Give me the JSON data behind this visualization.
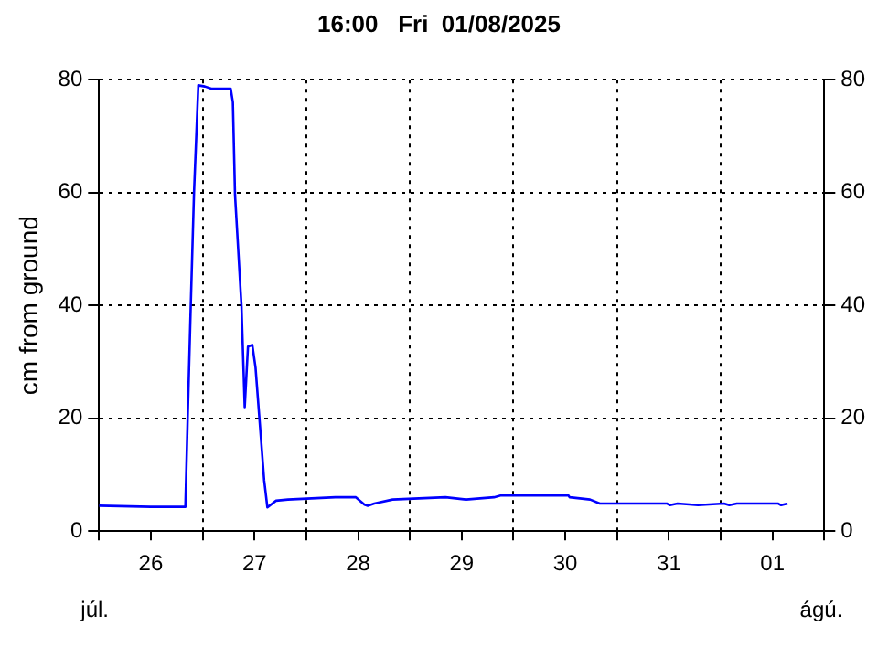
{
  "chart_data": {
    "type": "line",
    "title": "16:00   Fri  01/08/2025",
    "ylabel": "cm from ground",
    "annotations": [
      "júl.",
      "ágú."
    ],
    "x": [
      "2025-07-26T00:00",
      "2025-07-26T12:00",
      "2025-07-26T20:00",
      "2025-07-26T20:30",
      "2025-07-26T21:15",
      "2025-07-26T22:00",
      "2025-07-26T23:00",
      "2025-07-27T00:30",
      "2025-07-27T02:00",
      "2025-07-27T06:30",
      "2025-07-27T07:00",
      "2025-07-27T07:30",
      "2025-07-27T09:00",
      "2025-07-27T09:45",
      "2025-07-27T10:30",
      "2025-07-27T11:30",
      "2025-07-27T12:15",
      "2025-07-27T13:15",
      "2025-07-27T14:15",
      "2025-07-27T15:00",
      "2025-07-27T17:00",
      "2025-07-27T19:45",
      "2025-07-28T06:45",
      "2025-07-28T11:30",
      "2025-07-28T13:30",
      "2025-07-28T14:15",
      "2025-07-28T15:45",
      "2025-07-28T20:00",
      "2025-07-29T08:15",
      "2025-07-29T13:00",
      "2025-07-29T19:30",
      "2025-07-29T21:00",
      "2025-07-30T12:45",
      "2025-07-30T13:00",
      "2025-07-30T17:45",
      "2025-07-30T20:00",
      "2025-07-31T11:30",
      "2025-07-31T12:15",
      "2025-07-31T14:00",
      "2025-07-31T18:45",
      "2025-08-01T00:45",
      "2025-08-01T02:00",
      "2025-08-01T03:45",
      "2025-08-01T13:15",
      "2025-08-01T14:00",
      "2025-08-01T15:30"
    ],
    "series": [
      {
        "color": "#0000ff",
        "values": [
          4.5,
          4.3,
          4.3,
          19,
          40,
          60,
          79,
          78.8,
          78.4,
          78.4,
          76,
          59.6,
          39.8,
          22,
          32.7,
          33,
          29,
          19,
          9,
          4.2,
          5.4,
          5.6,
          6.0,
          6.0,
          4.7,
          4.5,
          4.9,
          5.6,
          6.0,
          5.6,
          6.0,
          6.3,
          6.3,
          6.0,
          5.6,
          4.9,
          4.9,
          4.6,
          4.9,
          4.6,
          4.9,
          4.6,
          4.9,
          4.9,
          4.6,
          4.9
        ]
      }
    ],
    "xlim": [
      "2025-07-26T00:00",
      "2025-08-02T00:00"
    ],
    "xticks": [
      {
        "value": "2025-07-26T00:00",
        "label": null
      },
      {
        "value": "2025-07-26T12:00",
        "label": "26"
      },
      {
        "value": "2025-07-27T00:00",
        "label": null
      },
      {
        "value": "2025-07-27T12:00",
        "label": "27"
      },
      {
        "value": "2025-07-28T00:00",
        "label": null
      },
      {
        "value": "2025-07-28T12:00",
        "label": "28"
      },
      {
        "value": "2025-07-29T00:00",
        "label": null
      },
      {
        "value": "2025-07-29T12:00",
        "label": "29"
      },
      {
        "value": "2025-07-30T00:00",
        "label": null
      },
      {
        "value": "2025-07-30T12:00",
        "label": "30"
      },
      {
        "value": "2025-07-31T00:00",
        "label": null
      },
      {
        "value": "2025-07-31T12:00",
        "label": "31"
      },
      {
        "value": "2025-08-01T00:00",
        "label": null
      },
      {
        "value": "2025-08-01T12:00",
        "label": "01"
      },
      {
        "value": "2025-08-02T00:00",
        "label": null
      }
    ],
    "ylim": [
      0,
      80
    ],
    "yticks": [
      0,
      20,
      40,
      60,
      80
    ],
    "y2lim": [
      0,
      80
    ],
    "y2ticks": [
      0,
      20,
      40,
      60,
      80
    ],
    "grid": true,
    "legend": false,
    "marker": "none",
    "line_style": "solid"
  }
}
